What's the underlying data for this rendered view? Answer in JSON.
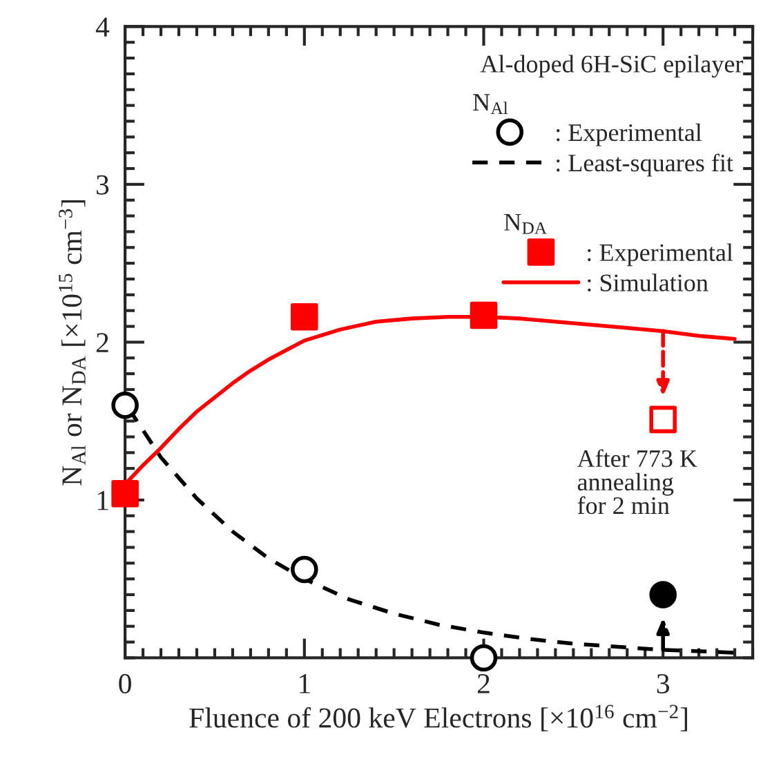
{
  "chart_data": {
    "type": "scatter",
    "xlabel": "Fluence of 200 keV Electrons [×10$^{16}$ cm$^{−2}$]",
    "ylabel": "N$_{Al}$ or N$_{DA}$ [×10$^{15}$ cm$^{−3}$]",
    "legend_title": "Al-doped 6H-SiC epilayer",
    "legend": "top right",
    "annotations": [
      "N$_{Al}$",
      "N$_{DA}$",
      "After 773 K\nannealing\nfor 2 min"
    ],
    "xlim": [
      0,
      3.5
    ],
    "xticks": [
      0,
      1,
      2,
      3
    ],
    "ylim": [
      0,
      4
    ],
    "yticks": [
      1,
      2,
      3,
      4
    ],
    "grid": false,
    "series": [
      {
        "name": ": Experimental",
        "marker": "circle",
        "colors": [
          "#ffffff",
          "#ffffff",
          "#ffffff"
        ],
        "color": "#000000",
        "x": [
          0,
          1,
          2
        ],
        "values": [
          1.6,
          0.56,
          0.0
        ]
      },
      {
        "name": ": Least-squares fit",
        "type": "line",
        "line_style": "dashed",
        "color": "#000000",
        "x": [
          0.02,
          0.2,
          0.4,
          0.6,
          0.8,
          1.0,
          1.25,
          1.5,
          1.75,
          2.0,
          2.25,
          2.5,
          2.75,
          3.0,
          3.25,
          3.45
        ],
        "values": [
          1.58,
          1.27,
          1.01,
          0.8,
          0.63,
          0.5,
          0.37,
          0.28,
          0.21,
          0.16,
          0.12,
          0.09,
          0.07,
          0.05,
          0.04,
          0.03
        ]
      },
      {
        "name": ": Experimental",
        "marker": "square",
        "color": "#ff0000",
        "x": [
          0,
          1,
          2
        ],
        "values": [
          1.04,
          2.16,
          2.17
        ]
      },
      {
        "name": ": Simulation",
        "type": "line",
        "line_style": "solid",
        "color": "#ff0000",
        "x": [
          0,
          0.1,
          0.2,
          0.3,
          0.4,
          0.5,
          0.6,
          0.7,
          0.8,
          0.9,
          1.0,
          1.2,
          1.4,
          1.6,
          1.8,
          2.0,
          2.2,
          2.5,
          2.8,
          3.0,
          3.2,
          3.4
        ],
        "values": [
          1.1,
          1.22,
          1.33,
          1.45,
          1.56,
          1.65,
          1.74,
          1.82,
          1.89,
          1.95,
          2.01,
          2.08,
          2.13,
          2.15,
          2.16,
          2.16,
          2.15,
          2.12,
          2.09,
          2.07,
          2.04,
          2.02
        ]
      },
      {
        "marker": "square",
        "colors": [
          "#ffffff"
        ],
        "color": "#ff0000",
        "x": [
          3
        ],
        "values": [
          1.51
        ]
      },
      {
        "marker": "circle",
        "color": "#000000",
        "x": [
          3
        ],
        "values": [
          0.4
        ]
      }
    ]
  }
}
